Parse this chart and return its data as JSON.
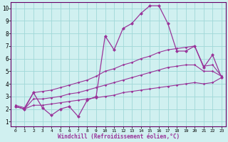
{
  "title": "",
  "xlabel": "Windchill (Refroidissement éolien,°C)",
  "ylabel": "",
  "bg_color": "#d0f0f0",
  "plot_bg_color": "#d0f0f0",
  "grid_color": "#a0d8d8",
  "line_color": "#993399",
  "spine_color": "#660066",
  "xlim_min": -0.5,
  "xlim_max": 23.5,
  "ylim_min": 0.6,
  "ylim_max": 10.5,
  "xticks": [
    0,
    1,
    2,
    3,
    4,
    5,
    6,
    7,
    8,
    9,
    10,
    11,
    12,
    13,
    14,
    15,
    16,
    17,
    18,
    19,
    20,
    21,
    22,
    23
  ],
  "yticks": [
    1,
    2,
    3,
    4,
    5,
    6,
    7,
    8,
    9,
    10
  ],
  "series": [
    {
      "x": [
        0,
        1,
        2,
        3,
        4,
        5,
        6,
        7,
        8,
        9,
        10,
        11,
        12,
        13,
        14,
        15,
        16,
        17,
        18,
        19,
        20,
        21,
        22,
        23
      ],
      "y": [
        2.2,
        2.0,
        3.3,
        2.1,
        1.5,
        2.0,
        2.2,
        1.4,
        2.7,
        3.0,
        7.8,
        6.7,
        8.4,
        8.8,
        9.6,
        10.2,
        10.2,
        8.8,
        6.6,
        6.6,
        7.0,
        5.3,
        6.3,
        4.5
      ],
      "markersize": 2.5,
      "linewidth": 0.9
    },
    {
      "x": [
        0,
        1,
        2,
        3,
        4,
        5,
        6,
        7,
        8,
        9,
        10,
        11,
        12,
        13,
        14,
        15,
        16,
        17,
        18,
        19,
        20,
        21,
        22,
        23
      ],
      "y": [
        2.3,
        2.1,
        3.3,
        3.4,
        3.5,
        3.7,
        3.9,
        4.1,
        4.3,
        4.6,
        5.0,
        5.2,
        5.5,
        5.7,
        6.0,
        6.2,
        6.5,
        6.7,
        6.8,
        6.9,
        7.0,
        5.4,
        5.5,
        4.6
      ],
      "markersize": 1.8,
      "linewidth": 0.8
    },
    {
      "x": [
        0,
        1,
        2,
        3,
        4,
        5,
        6,
        7,
        8,
        9,
        10,
        11,
        12,
        13,
        14,
        15,
        16,
        17,
        18,
        19,
        20,
        21,
        22,
        23
      ],
      "y": [
        2.2,
        2.0,
        2.8,
        2.8,
        2.9,
        3.0,
        3.2,
        3.3,
        3.5,
        3.7,
        3.9,
        4.1,
        4.3,
        4.5,
        4.7,
        4.9,
        5.1,
        5.3,
        5.4,
        5.5,
        5.5,
        5.0,
        5.0,
        4.6
      ],
      "markersize": 1.8,
      "linewidth": 0.8
    },
    {
      "x": [
        0,
        1,
        2,
        3,
        4,
        5,
        6,
        7,
        8,
        9,
        10,
        11,
        12,
        13,
        14,
        15,
        16,
        17,
        18,
        19,
        20,
        21,
        22,
        23
      ],
      "y": [
        2.2,
        2.0,
        2.3,
        2.3,
        2.4,
        2.5,
        2.6,
        2.7,
        2.8,
        2.9,
        3.0,
        3.1,
        3.3,
        3.4,
        3.5,
        3.6,
        3.7,
        3.8,
        3.9,
        4.0,
        4.1,
        4.0,
        4.1,
        4.5
      ],
      "markersize": 1.8,
      "linewidth": 0.8
    }
  ]
}
